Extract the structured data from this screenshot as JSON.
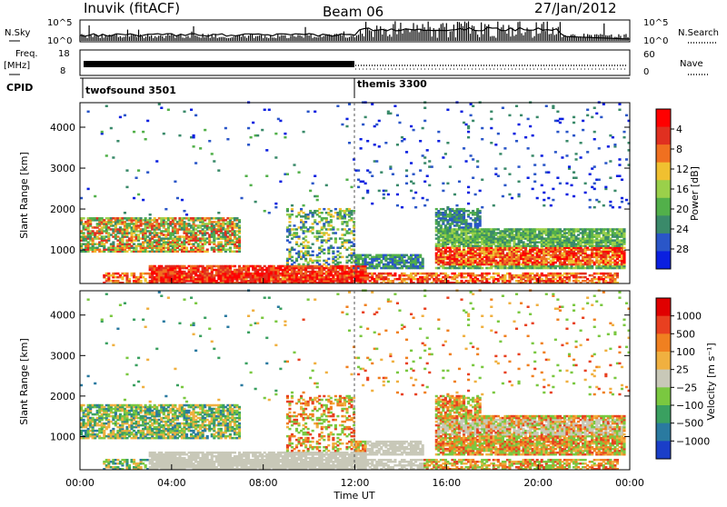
{
  "header": {
    "station": "Inuvik (fitACF)",
    "beam": "Beam 06",
    "date": "27/Jan/2012"
  },
  "panels": {
    "nsky_label": "N.Sky",
    "nsearch_label": "N.Search",
    "nsky_ticks": [
      "10^5",
      "10^0"
    ],
    "nsearch_ticks": [
      "10^5",
      "10^0"
    ],
    "freq_label": "Freq.",
    "freq_unit": "[MHz]",
    "freq_ticks": [
      "18",
      "8"
    ],
    "nave_label": "Nave",
    "nave_ticks": [
      "60",
      "0"
    ],
    "cpid_label": "CPID",
    "cpid_modes": [
      {
        "name": "twofsound 3501",
        "start_hour": 0
      },
      {
        "name": "themis 3300",
        "start_hour": 12
      }
    ]
  },
  "chart_data": [
    {
      "type": "heatmap",
      "name": "power",
      "ylabel": "Slant Range [km]",
      "xlabel": "",
      "x_ticks": [
        "00:00",
        "04:00",
        "08:00",
        "12:00",
        "16:00",
        "20:00",
        "00:00"
      ],
      "y_ticks": [
        "1000",
        "2000",
        "3000",
        "4000"
      ],
      "ylim": [
        180,
        4600
      ],
      "xlim": [
        0,
        24
      ],
      "colorbar": {
        "label": "Power [dB]",
        "ticks": [
          "4",
          "8",
          "12",
          "16",
          "20",
          "24",
          "28"
        ],
        "colors": [
          "#0a1fe0",
          "#2a56c8",
          "#3a8a6a",
          "#52b04a",
          "#9ad04a",
          "#f0c030",
          "#f07020",
          "#e03020",
          "#ff0000"
        ]
      }
    },
    {
      "type": "heatmap",
      "name": "velocity",
      "ylabel": "Slant Range [km]",
      "xlabel": "Time UT",
      "x_ticks": [
        "00:00",
        "04:00",
        "08:00",
        "12:00",
        "16:00",
        "20:00",
        "00:00"
      ],
      "y_ticks": [
        "1000",
        "2000",
        "3000",
        "4000"
      ],
      "ylim": [
        180,
        4600
      ],
      "xlim": [
        0,
        24
      ],
      "colorbar": {
        "label": "Velocity [m s⁻¹]",
        "ticks": [
          "1000",
          "500",
          "100",
          "25",
          "−25",
          "−100",
          "−500",
          "−1000"
        ],
        "colors": [
          "#1a3ec8",
          "#2a7aa0",
          "#3aa060",
          "#7ac840",
          "#c8c8b8",
          "#f0b040",
          "#f08020",
          "#e84020",
          "#e00000"
        ]
      }
    }
  ]
}
